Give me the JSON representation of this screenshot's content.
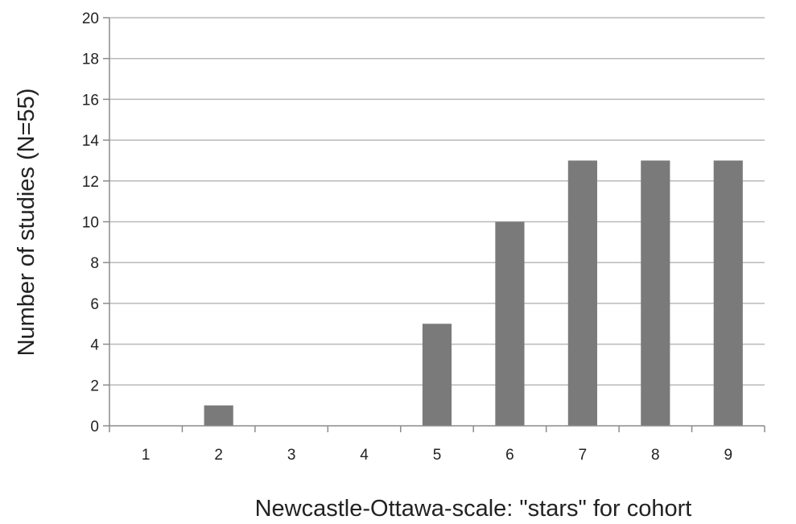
{
  "chart_data": {
    "type": "bar",
    "title": "",
    "xlabel": "Newcastle-Ottawa-scale: \"stars\" for cohort",
    "ylabel": "Number of studies (N=55)",
    "categories": [
      "1",
      "2",
      "3",
      "4",
      "5",
      "6",
      "7",
      "8",
      "9"
    ],
    "values": [
      0,
      1,
      0,
      0,
      5,
      10,
      13,
      13,
      13
    ],
    "ylim": [
      0,
      20
    ],
    "y_ticks": [
      "0",
      "2",
      "4",
      "6",
      "8",
      "10",
      "12",
      "14",
      "16",
      "18",
      "20"
    ],
    "grid": true,
    "legend": "none",
    "colors": {
      "bar": "#7a7a7a",
      "grid": "#b9b9b9",
      "axis": "#8c8c8c"
    }
  }
}
